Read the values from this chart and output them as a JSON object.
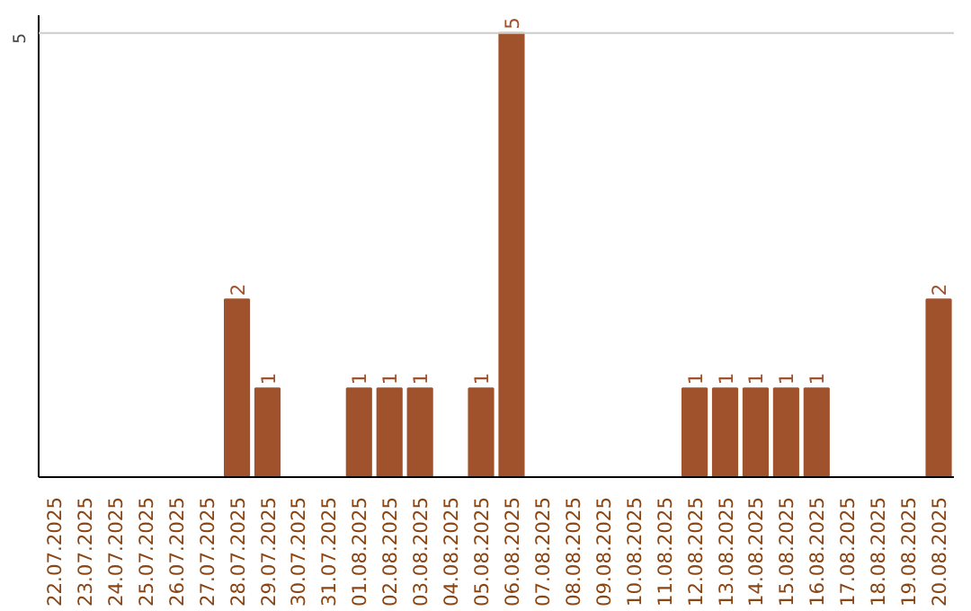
{
  "chart_data": {
    "type": "bar",
    "categories": [
      "22.07.2025",
      "23.07.2025",
      "24.07.2025",
      "25.07.2025",
      "26.07.2025",
      "27.07.2025",
      "28.07.2025",
      "29.07.2025",
      "30.07.2025",
      "31.07.2025",
      "01.08.2025",
      "02.08.2025",
      "03.08.2025",
      "04.08.2025",
      "05.08.2025",
      "06.08.2025",
      "07.08.2025",
      "08.08.2025",
      "09.08.2025",
      "10.08.2025",
      "11.08.2025",
      "12.08.2025",
      "13.08.2025",
      "14.08.2025",
      "15.08.2025",
      "16.08.2025",
      "17.08.2025",
      "18.08.2025",
      "19.08.2025",
      "20.08.2025"
    ],
    "values": [
      0,
      0,
      0,
      0,
      0,
      0,
      2,
      1,
      0,
      0,
      1,
      1,
      1,
      0,
      1,
      5,
      0,
      0,
      0,
      0,
      0,
      1,
      1,
      1,
      1,
      1,
      0,
      0,
      0,
      2
    ],
    "value_labels": [
      null,
      null,
      null,
      null,
      null,
      null,
      "2",
      "1",
      null,
      null,
      "1",
      "1",
      "1",
      null,
      "1",
      "5",
      null,
      null,
      null,
      null,
      null,
      "1",
      "1",
      "1",
      "1",
      "1",
      null,
      null,
      null,
      "2"
    ],
    "color": "#a0522d",
    "ylim": [
      0,
      5.2
    ],
    "ref_lines": [
      {
        "axis": "y",
        "value": 5,
        "label": "5",
        "color": "#cccccc"
      }
    ]
  }
}
